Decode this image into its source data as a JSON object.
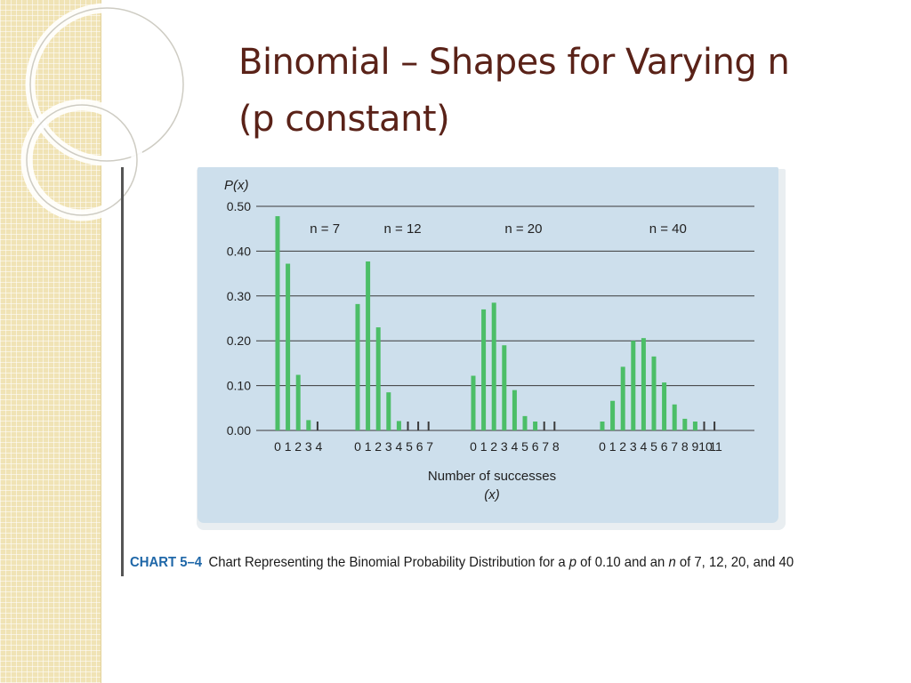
{
  "slide": {
    "title_line1": "Binomial – Shapes for Varying n",
    "title_line2": "(p constant)"
  },
  "colors": {
    "accent": "#5a2218",
    "bar": "#4cbe67",
    "panel": "#cddfec",
    "caption_label": "#1f67a8"
  },
  "caption": {
    "label": "CHART 5–4",
    "text_before_p": "Chart Representing the Binomial Probability Distribution for a ",
    "p_symbol": "p",
    "text_between": " of 0.10 and an ",
    "n_symbol": "n",
    "text_after": " of 7, 12, 20, and 40"
  },
  "chart_data": {
    "type": "bar",
    "ylabel": "P(x)",
    "xlabel_line1": "Number of successes",
    "xlabel_line2": "(x)",
    "ylim": [
      0,
      0.5
    ],
    "yticks": [
      "0.00",
      "0.10",
      "0.20",
      "0.30",
      "0.40",
      "0.50"
    ],
    "grid": true,
    "series": [
      {
        "label": "n = 7",
        "x": [
          0,
          1,
          2,
          3,
          4
        ],
        "values": [
          0.478,
          0.372,
          0.124,
          0.023,
          0.003
        ]
      },
      {
        "label": "n = 12",
        "x": [
          0,
          1,
          2,
          3,
          4,
          5,
          6,
          7
        ],
        "values": [
          0.282,
          0.377,
          0.23,
          0.085,
          0.021,
          0.004,
          0.0,
          0.0
        ]
      },
      {
        "label": "n = 20",
        "x": [
          0,
          1,
          2,
          3,
          4,
          5,
          6,
          7,
          8
        ],
        "values": [
          0.122,
          0.27,
          0.285,
          0.19,
          0.09,
          0.032,
          0.009,
          0.002,
          0.0
        ]
      },
      {
        "label": "n = 40",
        "x": [
          0,
          1,
          2,
          3,
          4,
          5,
          6,
          7,
          8,
          9,
          10,
          11
        ],
        "values": [
          0.015,
          0.066,
          0.142,
          0.2,
          0.206,
          0.165,
          0.107,
          0.058,
          0.026,
          0.01,
          0.003,
          0.001
        ]
      }
    ]
  }
}
